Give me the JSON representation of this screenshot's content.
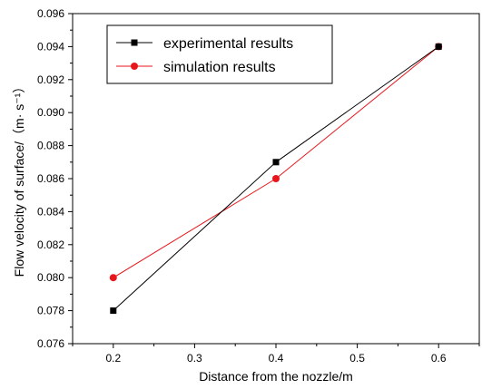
{
  "chart_data": {
    "type": "line",
    "xlabel": "Distance from the nozzle/m",
    "ylabel": "Flow velocity of surface/（m· s⁻¹）",
    "xlim": [
      0.15,
      0.65
    ],
    "ylim": [
      0.076,
      0.096
    ],
    "x_ticks": [
      "0.2",
      "0.3",
      "0.4",
      "0.5",
      "0.6"
    ],
    "y_ticks": [
      "0.076",
      "0.078",
      "0.080",
      "0.082",
      "0.084",
      "0.086",
      "0.088",
      "0.090",
      "0.092",
      "0.094",
      "0.096"
    ],
    "x": [
      0.2,
      0.4,
      0.6
    ],
    "series": [
      {
        "name": "experimental results",
        "values": [
          0.078,
          0.087,
          0.094
        ],
        "color": "#000000",
        "marker": "square"
      },
      {
        "name": "simulation results",
        "values": [
          0.08,
          0.086,
          0.094
        ],
        "color": "#e8161b",
        "marker": "circle"
      }
    ],
    "legend_position": "top-left",
    "grid": false
  }
}
